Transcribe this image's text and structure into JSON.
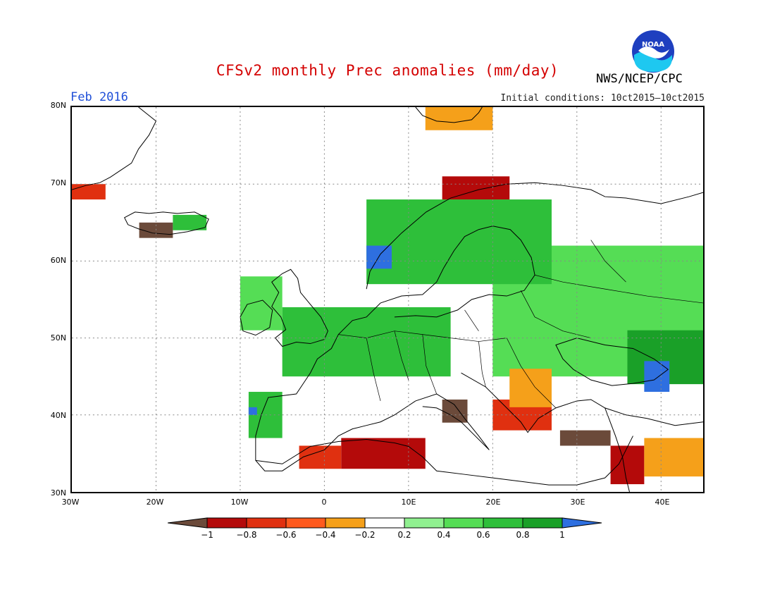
{
  "title": "CFSv2 monthly Prec anomalies (mm/day)",
  "agency": "NWS/NCEP/CPC",
  "logo_text": "NOAA",
  "period": "Feb 2016",
  "initial_conditions": "Initial conditions: 10ct2015–10ct2015",
  "lat_labels": [
    {
      "label": "80N",
      "lat": 80
    },
    {
      "label": "70N",
      "lat": 70
    },
    {
      "label": "60N",
      "lat": 60
    },
    {
      "label": "50N",
      "lat": 50
    },
    {
      "label": "40N",
      "lat": 40
    },
    {
      "label": "30N",
      "lat": 30
    }
  ],
  "lon_labels": [
    {
      "label": "30W",
      "lon": -30
    },
    {
      "label": "20W",
      "lon": -20
    },
    {
      "label": "10W",
      "lon": -10
    },
    {
      "label": "0",
      "lon": 0
    },
    {
      "label": "10E",
      "lon": 10
    },
    {
      "label": "20E",
      "lon": 20
    },
    {
      "label": "30E",
      "lon": 30
    },
    {
      "label": "40E",
      "lon": 40
    }
  ],
  "colorbar": {
    "colors": [
      "#6b4a3a",
      "#b40a0a",
      "#e03010",
      "#ff5a1e",
      "#f5a01a",
      "#ffffff",
      "#90f090",
      "#55dd55",
      "#2ebf3a",
      "#1aa028",
      "#2e6fe0"
    ],
    "labels": [
      "−1",
      "−0.8",
      "−0.6",
      "−0.4",
      "−0.2",
      "0.2",
      "0.4",
      "0.6",
      "0.8",
      "1"
    ]
  },
  "anomaly_regions": [
    {
      "lon_min": 20,
      "lon_max": 45,
      "lat_min": 45,
      "lat_max": 62,
      "value": 0.4
    },
    {
      "lon_min": 36,
      "lon_max": 45,
      "lat_min": 44,
      "lat_max": 51,
      "value": 0.8
    },
    {
      "lon_min": 38,
      "lon_max": 41,
      "lat_min": 43,
      "lat_max": 47,
      "value": 1.2
    },
    {
      "lon_min": 5,
      "lon_max": 27,
      "lat_min": 57,
      "lat_max": 68,
      "value": 0.6
    },
    {
      "lon_min": 5,
      "lon_max": 8,
      "lat_min": 59,
      "lat_max": 62,
      "value": 1.2
    },
    {
      "lon_min": 14,
      "lon_max": 22,
      "lat_min": 68,
      "lat_max": 71,
      "value": -0.8
    },
    {
      "lon_min": -5,
      "lon_max": 15,
      "lat_min": 45,
      "lat_max": 54,
      "value": 0.6
    },
    {
      "lon_min": -10,
      "lon_max": -5,
      "lat_min": 51,
      "lat_max": 58,
      "value": 0.5
    },
    {
      "lon_min": 2,
      "lon_max": 12,
      "lat_min": 33,
      "lat_max": 37,
      "value": -0.8
    },
    {
      "lon_min": -3,
      "lon_max": 2,
      "lat_min": 33,
      "lat_max": 36,
      "value": -0.6
    },
    {
      "lon_min": 20,
      "lon_max": 27,
      "lat_min": 38,
      "lat_max": 42,
      "value": -0.6
    },
    {
      "lon_min": 22,
      "lon_max": 27,
      "lat_min": 41,
      "lat_max": 46,
      "value": -0.3
    },
    {
      "lon_min": 28,
      "lon_max": 34,
      "lat_min": 36,
      "lat_max": 38,
      "value": -1.0
    },
    {
      "lon_min": 34,
      "lon_max": 38,
      "lat_min": 31,
      "lat_max": 36,
      "value": -0.8
    },
    {
      "lon_min": 38,
      "lon_max": 45,
      "lat_min": 32,
      "lat_max": 37,
      "value": -0.3
    },
    {
      "lon_min": -9,
      "lon_max": -5,
      "lat_min": 37,
      "lat_max": 43,
      "value": 0.6
    },
    {
      "lon_min": -9,
      "lon_max": -8,
      "lat_min": 40,
      "lat_max": 41,
      "value": 1.2
    },
    {
      "lon_min": -30,
      "lon_max": -26,
      "lat_min": 68,
      "lat_max": 70,
      "value": -0.6
    },
    {
      "lon_min": -22,
      "lon_max": -18,
      "lat_min": 63,
      "lat_max": 65,
      "value": -1.0
    },
    {
      "lon_min": -18,
      "lon_max": -14,
      "lat_min": 64,
      "lat_max": 66,
      "value": 0.6
    },
    {
      "lon_min": 12,
      "lon_max": 20,
      "lat_min": 77,
      "lat_max": 80,
      "value": -0.3
    },
    {
      "lon_min": 14,
      "lon_max": 17,
      "lat_min": 39,
      "lat_max": 42,
      "value": -1.0
    }
  ]
}
